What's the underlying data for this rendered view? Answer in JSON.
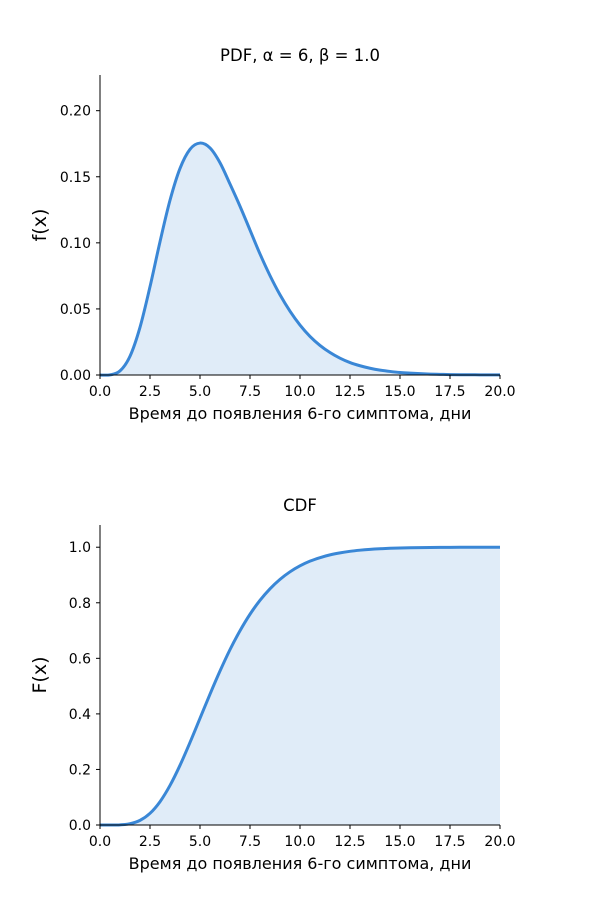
{
  "chart_data": [
    {
      "type": "area",
      "title": "PDF, α = 6, β = 1.0",
      "xlabel": "Время до появления 6-го симптома, дни",
      "ylabel": "f(x)",
      "xlim": [
        0,
        20
      ],
      "ylim": [
        0,
        0.227
      ],
      "xticks": [
        "0.0",
        "2.5",
        "5.0",
        "7.5",
        "10.0",
        "12.5",
        "15.0",
        "17.5",
        "20.0"
      ],
      "yticks": [
        "0.00",
        "0.05",
        "0.10",
        "0.15",
        "0.20"
      ],
      "grid": false,
      "color": "#3a87d6",
      "fill_color": "#e0ecf8",
      "series": [
        {
          "x": [
            0,
            0.5,
            1,
            1.5,
            2,
            2.5,
            3,
            3.5,
            4,
            4.5,
            5,
            5.5,
            6,
            6.5,
            7,
            7.5,
            8,
            8.5,
            9,
            9.5,
            10,
            10.5,
            11,
            11.5,
            12,
            12.5,
            13,
            13.5,
            14,
            14.5,
            15,
            15.5,
            16,
            16.5,
            17,
            17.5,
            18,
            18.5,
            19,
            19.5,
            20
          ],
          "values": [
            0,
            0.0001,
            0.0031,
            0.0142,
            0.0361,
            0.0668,
            0.1008,
            0.1322,
            0.1563,
            0.1708,
            0.1755,
            0.1718,
            0.1606,
            0.1445,
            0.1277,
            0.1097,
            0.0916,
            0.0752,
            0.0607,
            0.0483,
            0.0378,
            0.0292,
            0.0224,
            0.017,
            0.0127,
            0.0094,
            0.007,
            0.0051,
            0.0037,
            0.0027,
            0.0019,
            0.0014,
            0.001,
            0.0007,
            0.0005,
            0.0003,
            0.0002,
            0.0002,
            0.0001,
            0.0001,
            0.0001
          ]
        }
      ]
    },
    {
      "type": "area",
      "title": "CDF",
      "xlabel": "Время до появления 6-го симптома, дни",
      "ylabel": "F(x)",
      "xlim": [
        0,
        20
      ],
      "ylim": [
        0,
        1.08
      ],
      "xticks": [
        "0.0",
        "2.5",
        "5.0",
        "7.5",
        "10.0",
        "12.5",
        "15.0",
        "17.5",
        "20.0"
      ],
      "yticks": [
        "0.0",
        "0.2",
        "0.4",
        "0.6",
        "0.8",
        "1.0"
      ],
      "grid": false,
      "color": "#3a87d6",
      "fill_color": "#e0ecf8",
      "series": [
        {
          "x": [
            0,
            0.5,
            1,
            1.5,
            2,
            2.5,
            3,
            3.5,
            4,
            4.5,
            5,
            5.5,
            6,
            6.5,
            7,
            7.5,
            8,
            8.5,
            9,
            9.5,
            10,
            10.5,
            11,
            11.5,
            12,
            12.5,
            13,
            13.5,
            14,
            14.5,
            15,
            15.5,
            16,
            16.5,
            17,
            17.5,
            18,
            18.5,
            19,
            19.5,
            20
          ],
          "values": [
            0,
            0,
            0.0006,
            0.0045,
            0.0166,
            0.042,
            0.0839,
            0.1424,
            0.2149,
            0.2971,
            0.384,
            0.4711,
            0.5543,
            0.6314,
            0.6993,
            0.7587,
            0.8088,
            0.8504,
            0.8843,
            0.9115,
            0.933,
            0.9498,
            0.9625,
            0.9724,
            0.9797,
            0.9853,
            0.9893,
            0.9923,
            0.9945,
            0.9961,
            0.9972,
            0.998,
            0.9986,
            0.999,
            0.9993,
            0.9995,
            0.9997,
            0.9998,
            0.9998,
            0.9999,
            0.9999
          ]
        }
      ]
    }
  ]
}
